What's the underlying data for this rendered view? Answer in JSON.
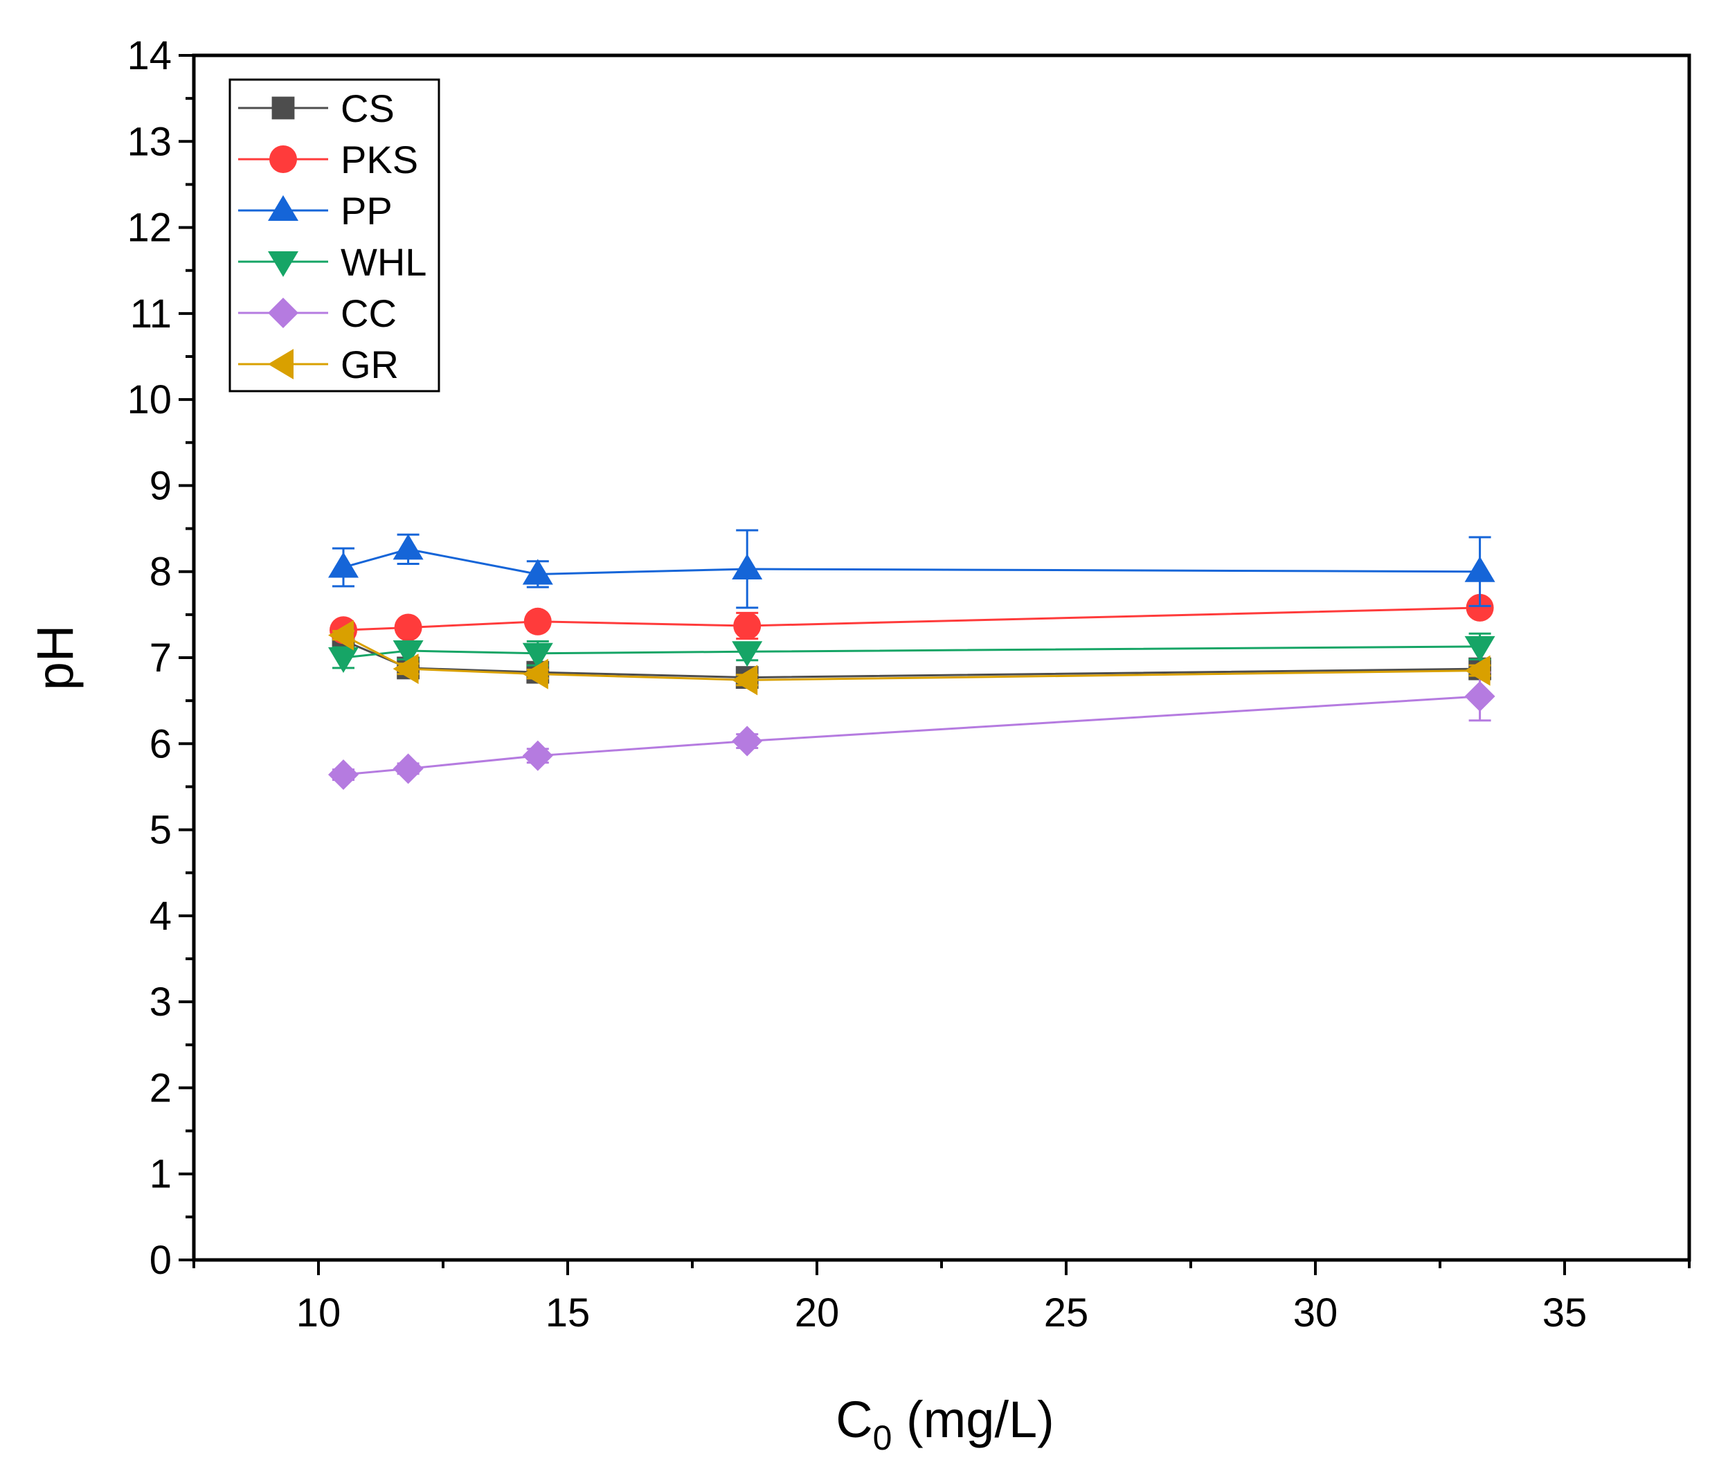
{
  "chart_data": {
    "type": "line",
    "title": "",
    "xlabel": "C",
    "xlabel_sub": "0",
    "xlabel_units": " (mg/L)",
    "ylabel": "pH",
    "xlim": [
      7.5,
      37.5
    ],
    "ylim": [
      0,
      14
    ],
    "xticks": [
      10,
      15,
      20,
      25,
      30,
      35
    ],
    "yticks": [
      0,
      1,
      2,
      3,
      4,
      5,
      6,
      7,
      8,
      9,
      10,
      11,
      12,
      13,
      14
    ],
    "grid": false,
    "legend_position": "top-left",
    "x": [
      10.5,
      11.8,
      14.4,
      18.6,
      33.3
    ],
    "series": [
      {
        "name": "CS",
        "marker": "square",
        "color": "#4d4d4d",
        "values": [
          7.2,
          6.88,
          6.83,
          6.77,
          6.87
        ],
        "errors": [
          0.06,
          0.08,
          0.07,
          0.1,
          0.08
        ]
      },
      {
        "name": "PKS",
        "marker": "circle",
        "color": "#ff3b3b",
        "values": [
          7.32,
          7.35,
          7.42,
          7.37,
          7.58
        ],
        "errors": [
          0.07,
          0.08,
          0.06,
          0.15,
          0.05
        ]
      },
      {
        "name": "PP",
        "marker": "triangle-up",
        "color": "#1565d8",
        "values": [
          8.05,
          8.26,
          7.97,
          8.03,
          8.0
        ],
        "errors": [
          0.22,
          0.17,
          0.15,
          0.45,
          0.4
        ]
      },
      {
        "name": "WHL",
        "marker": "triangle-down",
        "color": "#16a566",
        "values": [
          7.0,
          7.08,
          7.05,
          7.07,
          7.13
        ],
        "errors": [
          0.12,
          0.1,
          0.14,
          0.1,
          0.15
        ]
      },
      {
        "name": "CC",
        "marker": "diamond",
        "color": "#b57be0",
        "values": [
          5.64,
          5.71,
          5.86,
          6.03,
          6.55
        ],
        "errors": [
          0.06,
          0.06,
          0.08,
          0.08,
          0.28
        ]
      },
      {
        "name": "GR",
        "marker": "triangle-left",
        "color": "#d9a000",
        "values": [
          7.26,
          6.87,
          6.81,
          6.74,
          6.85
        ],
        "errors": [
          0.05,
          0.06,
          0.05,
          0.06,
          0.06
        ]
      }
    ]
  }
}
